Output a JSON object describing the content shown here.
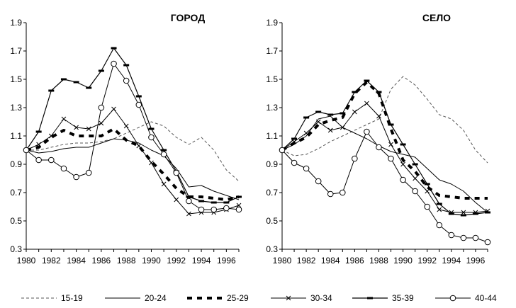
{
  "chart_data": [
    {
      "type": "line",
      "title": "ГОРОД",
      "xlabel": "",
      "ylabel": "",
      "xlim": [
        1980,
        1997
      ],
      "ylim": [
        0.3,
        1.9
      ],
      "x_ticks": [
        "1980",
        "1982",
        "1984",
        "1986",
        "1988",
        "1990",
        "1992",
        "1994",
        "1996"
      ],
      "y_ticks": [
        "0.3",
        "0.5",
        "0.7",
        "0.9",
        "1.1",
        "1.3",
        "1.5",
        "1.7",
        "1.9"
      ],
      "grid": false,
      "x": [
        1980,
        1981,
        1982,
        1983,
        1984,
        1985,
        1986,
        1987,
        1988,
        1989,
        1990,
        1991,
        1992,
        1993,
        1994,
        1995,
        1996,
        1997
      ],
      "series": [
        {
          "name": "15-19",
          "values": [
            1.0,
            1.0,
            1.02,
            1.04,
            1.05,
            1.05,
            1.06,
            1.08,
            1.12,
            1.16,
            1.2,
            1.17,
            1.09,
            1.04,
            1.09,
            1.0,
            0.86,
            0.78
          ]
        },
        {
          "name": "20-24",
          "values": [
            1.0,
            0.98,
            0.99,
            1.01,
            1.02,
            1.02,
            1.05,
            1.08,
            1.07,
            1.05,
            1.0,
            0.96,
            0.87,
            0.74,
            0.75,
            0.71,
            0.68,
            0.65
          ]
        },
        {
          "name": "25-29",
          "values": [
            1.0,
            1.02,
            1.09,
            1.14,
            1.1,
            1.1,
            1.1,
            1.15,
            1.07,
            1.03,
            0.92,
            0.83,
            0.73,
            0.67,
            0.67,
            0.66,
            0.65,
            0.67
          ]
        },
        {
          "name": "30-34",
          "values": [
            1.0,
            1.04,
            1.1,
            1.22,
            1.16,
            1.15,
            1.19,
            1.29,
            1.17,
            1.03,
            0.91,
            0.76,
            0.65,
            0.55,
            0.56,
            0.56,
            0.58,
            0.61
          ]
        },
        {
          "name": "35-39",
          "values": [
            1.0,
            1.13,
            1.42,
            1.5,
            1.48,
            1.44,
            1.56,
            1.72,
            1.6,
            1.38,
            1.15,
            1.0,
            0.85,
            0.67,
            0.64,
            0.63,
            0.63,
            0.67
          ]
        },
        {
          "name": "40-44",
          "values": [
            1.0,
            0.93,
            0.93,
            0.87,
            0.81,
            0.84,
            1.3,
            1.61,
            1.49,
            1.32,
            1.09,
            0.97,
            0.84,
            0.64,
            0.58,
            0.58,
            0.59,
            0.58
          ]
        }
      ]
    },
    {
      "type": "line",
      "title": "СЕЛО",
      "xlabel": "",
      "ylabel": "",
      "xlim": [
        1980,
        1997
      ],
      "ylim": [
        0.3,
        1.9
      ],
      "x_ticks": [
        "1980",
        "1982",
        "1984",
        "1986",
        "1988",
        "1990",
        "1992",
        "1994",
        "1996"
      ],
      "y_ticks": [
        "0.3",
        "0.5",
        "0.7",
        "0.9",
        "1.1",
        "1.3",
        "1.5",
        "1.7",
        "1.9"
      ],
      "grid": false,
      "x": [
        1980,
        1981,
        1982,
        1983,
        1984,
        1985,
        1986,
        1987,
        1988,
        1989,
        1990,
        1991,
        1992,
        1993,
        1994,
        1995,
        1996,
        1997
      ],
      "series": [
        {
          "name": "15-19",
          "values": [
            1.0,
            0.96,
            0.97,
            1.01,
            1.06,
            1.1,
            1.14,
            1.18,
            1.22,
            1.43,
            1.52,
            1.46,
            1.36,
            1.25,
            1.22,
            1.14,
            1.0,
            0.91
          ]
        },
        {
          "name": "20-24",
          "values": [
            1.0,
            1.04,
            1.1,
            1.22,
            1.24,
            1.16,
            1.12,
            1.08,
            1.03,
            0.99,
            0.97,
            0.95,
            0.87,
            0.79,
            0.76,
            0.71,
            0.63,
            0.56
          ]
        },
        {
          "name": "25-29",
          "values": [
            1.0,
            1.05,
            1.09,
            1.18,
            1.21,
            1.23,
            1.4,
            1.48,
            1.4,
            1.15,
            0.93,
            0.85,
            0.74,
            0.68,
            0.67,
            0.66,
            0.66,
            0.66
          ]
        },
        {
          "name": "30-34",
          "values": [
            1.0,
            1.06,
            1.12,
            1.2,
            1.14,
            1.16,
            1.27,
            1.33,
            1.24,
            1.04,
            0.9,
            0.8,
            0.71,
            0.58,
            0.56,
            0.56,
            0.56,
            0.57
          ]
        },
        {
          "name": "35-39",
          "values": [
            1.0,
            1.08,
            1.23,
            1.27,
            1.25,
            1.26,
            1.41,
            1.49,
            1.41,
            1.18,
            1.04,
            0.9,
            0.76,
            0.62,
            0.55,
            0.54,
            0.55,
            0.56
          ]
        },
        {
          "name": "40-44",
          "values": [
            1.0,
            0.91,
            0.87,
            0.78,
            0.69,
            0.7,
            0.94,
            1.13,
            1.02,
            0.94,
            0.79,
            0.71,
            0.6,
            0.47,
            0.4,
            0.38,
            0.38,
            0.35
          ]
        }
      ]
    }
  ],
  "legend": [
    {
      "label": "15-19",
      "style": "dashed-thin"
    },
    {
      "label": "20-24",
      "style": "solid-thin"
    },
    {
      "label": "25-29",
      "style": "dashed-thick"
    },
    {
      "label": "30-34",
      "style": "x-marker"
    },
    {
      "label": "35-39",
      "style": "bar-marker"
    },
    {
      "label": "40-44",
      "style": "circle-marker"
    }
  ],
  "colors": {
    "ink": "#000000",
    "dashed_thin": "#555555",
    "background": "#ffffff"
  }
}
